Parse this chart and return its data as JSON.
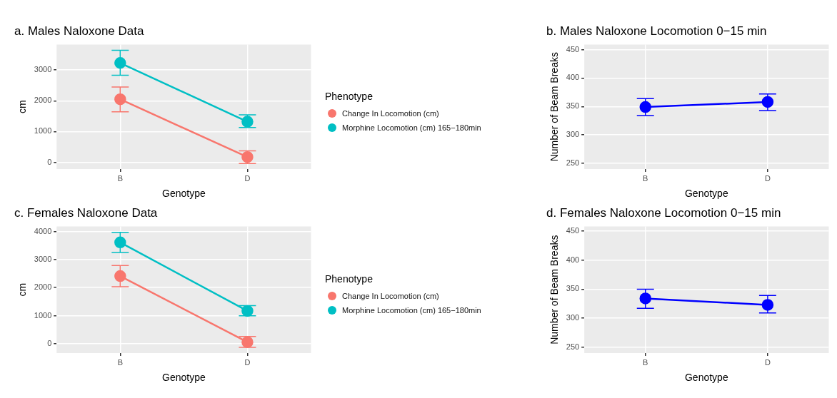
{
  "chart_data": [
    {
      "type": "line",
      "title": "a. Males Naloxone Data",
      "xlabel": "Genotype",
      "ylabel": "cm",
      "legend_title": "Phenotype",
      "categories": [
        "B",
        "D"
      ],
      "ylim": [
        -220,
        3830
      ],
      "yticks": [
        0,
        1000,
        2000,
        3000
      ],
      "grid": true,
      "legend": "right",
      "marker": "circle",
      "series": [
        {
          "name": "Change In Locomotion (cm)",
          "color": "#f8766d",
          "values": [
            2050,
            170
          ],
          "errors": [
            [
              1640,
              2450
            ],
            [
              -40,
              370
            ]
          ]
        },
        {
          "name": "Morphine Locomotion (cm) 165−180min",
          "color": "#00bfc4",
          "values": [
            3230,
            1320
          ],
          "errors": [
            [
              2830,
              3640
            ],
            [
              1130,
              1540
            ]
          ]
        }
      ]
    },
    {
      "type": "line",
      "title": "b. Males Naloxone Locomotion 0−15 min",
      "xlabel": "Genotype",
      "ylabel": "Number of Beam Breaks",
      "categories": [
        "B",
        "D"
      ],
      "ylim": [
        240,
        459
      ],
      "yticks": [
        250,
        300,
        350,
        400,
        450
      ],
      "grid": true,
      "marker": "circle",
      "series": [
        {
          "color": "#0000ff",
          "values": [
            349,
            358
          ],
          "errors": [
            [
              334,
              364
            ],
            [
              343,
              372
            ]
          ]
        }
      ]
    },
    {
      "type": "line",
      "title": "c. Females Naloxone Data",
      "xlabel": "Genotype",
      "ylabel": "cm",
      "legend_title": "Phenotype",
      "categories": [
        "B",
        "D"
      ],
      "ylim": [
        -330,
        4180
      ],
      "yticks": [
        0,
        1000,
        2000,
        3000,
        4000
      ],
      "grid": true,
      "legend": "right",
      "marker": "circle",
      "series": [
        {
          "name": "Change In Locomotion (cm)",
          "color": "#f8766d",
          "values": [
            2410,
            60
          ],
          "errors": [
            [
              2030,
              2790
            ],
            [
              -130,
              260
            ]
          ]
        },
        {
          "name": "Morphine Locomotion (cm) 165−180min",
          "color": "#00bfc4",
          "values": [
            3610,
            1170
          ],
          "errors": [
            [
              3250,
              3970
            ],
            [
              1000,
              1360
            ]
          ]
        }
      ]
    },
    {
      "type": "line",
      "title": "d. Females Naloxone Locomotion 0−15 min",
      "xlabel": "Genotype",
      "ylabel": "Number of Beam Breaks",
      "categories": [
        "B",
        "D"
      ],
      "ylim": [
        240,
        458
      ],
      "yticks": [
        250,
        300,
        350,
        400,
        450
      ],
      "grid": true,
      "marker": "circle",
      "series": [
        {
          "color": "#0000ff",
          "values": [
            334,
            323
          ],
          "errors": [
            [
              317,
              350
            ],
            [
              309,
              339
            ]
          ]
        }
      ]
    }
  ]
}
